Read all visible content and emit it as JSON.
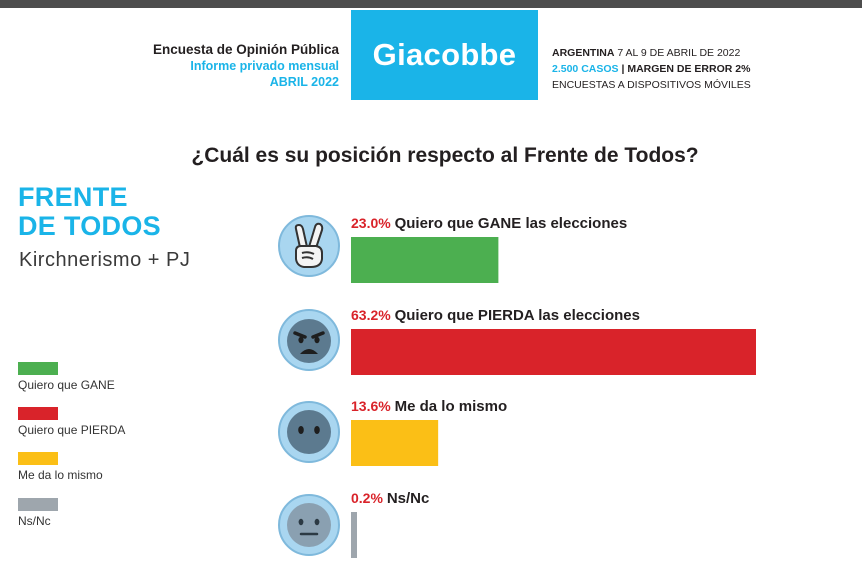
{
  "header": {
    "left_line1": "Encuesta de Opinión Pública",
    "left_line2": "Informe privado mensual",
    "left_line3": "ABRIL 2022",
    "brand": "Giacobbe",
    "right_line1_bold": "ARGENTINA",
    "right_line1_rest": "7 AL 9 DE ABRIL DE 2022",
    "right_line2_blue": "2.500 CASOS",
    "right_line2_rest": "| MARGEN DE ERROR 2%",
    "right_line3": "ENCUESTAS A DISPOSITIVOS MÓVILES"
  },
  "question": "¿Cuál es su posición respecto al Frente de Todos?",
  "party": {
    "title_line1": "FRENTE",
    "title_line2": "DE TODOS",
    "subtitle": "Kirchnerismo + PJ"
  },
  "legend": [
    {
      "label": "Quiero que GANE",
      "color": "#4caf50"
    },
    {
      "label": "Quiero que PIERDA",
      "color": "#d9232a"
    },
    {
      "label": "Me da lo mismo",
      "color": "#fbbf16"
    },
    {
      "label": "Ns/Nc",
      "color": "#9ea6ad"
    }
  ],
  "colors": {
    "accent": "#1ab4e8",
    "percent": "#d9232a",
    "topbar": "#4d4d4d"
  },
  "chart_data": {
    "type": "bar",
    "orientation": "horizontal",
    "categories": [
      "Quiero que GANE las elecciones",
      "Quiero que PIERDA las elecciones",
      "Me da lo mismo",
      "Ns/Nc"
    ],
    "values": [
      23.0,
      63.2,
      13.6,
      0.2
    ],
    "value_labels": [
      "23.0%",
      "63.2%",
      "13.6%",
      "0.2%"
    ],
    "colors": [
      "#4caf50",
      "#d9232a",
      "#fbbf16",
      "#9ea6ad"
    ],
    "icons": [
      "victory-hand-icon",
      "angry-face-icon",
      "neutral-face-icon",
      "expressionless-face-icon"
    ],
    "title": "¿Cuál es su posición respecto al Frente de Todos?",
    "xlabel": "",
    "ylabel": "",
    "xlim": [
      0,
      63.2
    ]
  }
}
